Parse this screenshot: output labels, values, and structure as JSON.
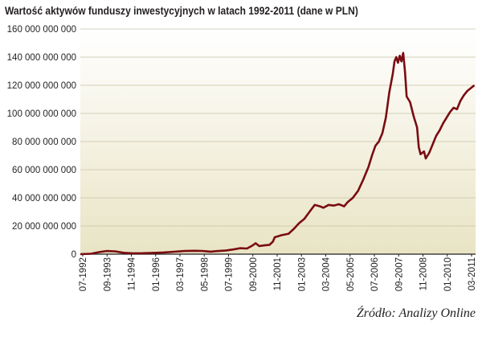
{
  "chart_data": {
    "type": "line",
    "title": "Wartość aktywów funduszy inwestycyjnych w latach 1992-2011 (dane w PLN)",
    "source": "Źródło: Analizy Online",
    "xlabel": "",
    "ylabel": "",
    "ylim": [
      0,
      160000000000
    ],
    "xlim": [
      "1992-07",
      "2011-03"
    ],
    "grid": "horizontal",
    "colors": {
      "line": "#7a0c11",
      "plot_bg_top": "#ffffff",
      "plot_bg_bottom": "#e9e4c5",
      "grid": "#c8c3a6"
    },
    "y_ticks": [
      {
        "value": 0,
        "label": "0"
      },
      {
        "value": 20000000000,
        "label": "20 000 000 000"
      },
      {
        "value": 40000000000,
        "label": "40 000 000 000"
      },
      {
        "value": 60000000000,
        "label": "60 000 000 000"
      },
      {
        "value": 80000000000,
        "label": "80 000 000 000"
      },
      {
        "value": 100000000000,
        "label": "100 000 000 000"
      },
      {
        "value": 120000000000,
        "label": "120 000 000 000"
      },
      {
        "value": 140000000000,
        "label": "140 000 000 000"
      },
      {
        "value": 160000000000,
        "label": "160 000 000 000"
      }
    ],
    "x_ticks": [
      "07-1992",
      "09-1993",
      "11-1994",
      "01-1996",
      "03-1997",
      "05-1998",
      "07-1999",
      "09-2000",
      "11-2001",
      "01-2003",
      "03-2004",
      "05-2005",
      "07-2006",
      "09-2007",
      "11-2008",
      "01-2010",
      "03-2011"
    ],
    "series": [
      {
        "points": [
          [
            "1992-07",
            0
          ],
          [
            "1993-01",
            300000000
          ],
          [
            "1993-06",
            1500000000
          ],
          [
            "1993-10",
            2200000000
          ],
          [
            "1994-03",
            2000000000
          ],
          [
            "1994-08",
            1000000000
          ],
          [
            "1995-01",
            600000000
          ],
          [
            "1995-07",
            700000000
          ],
          [
            "1996-01",
            900000000
          ],
          [
            "1996-07",
            1200000000
          ],
          [
            "1997-01",
            1700000000
          ],
          [
            "1997-07",
            2200000000
          ],
          [
            "1998-01",
            2400000000
          ],
          [
            "1998-05",
            2300000000
          ],
          [
            "1998-10",
            1800000000
          ],
          [
            "1999-01",
            2100000000
          ],
          [
            "1999-07",
            2600000000
          ],
          [
            "1999-11",
            3300000000
          ],
          [
            "2000-03",
            4200000000
          ],
          [
            "2000-07",
            4000000000
          ],
          [
            "2000-10",
            6000000000
          ],
          [
            "2000-12",
            7800000000
          ],
          [
            "2001-02",
            5800000000
          ],
          [
            "2001-05",
            6200000000
          ],
          [
            "2001-08",
            6600000000
          ],
          [
            "2001-10",
            9000000000
          ],
          [
            "2001-11",
            12000000000
          ],
          [
            "2002-03",
            13500000000
          ],
          [
            "2002-07",
            14500000000
          ],
          [
            "2002-10",
            18000000000
          ],
          [
            "2003-01",
            22000000000
          ],
          [
            "2003-04",
            25000000000
          ],
          [
            "2003-07",
            30000000000
          ],
          [
            "2003-10",
            35000000000
          ],
          [
            "2004-01",
            34000000000
          ],
          [
            "2004-03",
            33000000000
          ],
          [
            "2004-06",
            35000000000
          ],
          [
            "2004-09",
            34500000000
          ],
          [
            "2004-12",
            35500000000
          ],
          [
            "2005-03",
            34000000000
          ],
          [
            "2005-05",
            37000000000
          ],
          [
            "2005-08",
            40000000000
          ],
          [
            "2005-11",
            45000000000
          ],
          [
            "2006-02",
            53000000000
          ],
          [
            "2006-05",
            62000000000
          ],
          [
            "2006-07",
            70000000000
          ],
          [
            "2006-09",
            77000000000
          ],
          [
            "2006-11",
            80000000000
          ],
          [
            "2007-01",
            86000000000
          ],
          [
            "2007-03",
            97000000000
          ],
          [
            "2007-05",
            115000000000
          ],
          [
            "2007-07",
            128000000000
          ],
          [
            "2007-08",
            137000000000
          ],
          [
            "2007-09",
            140000000000
          ],
          [
            "2007-10",
            136000000000
          ],
          [
            "2007-11",
            141000000000
          ],
          [
            "2007-12",
            137000000000
          ],
          [
            "2008-01",
            143000000000
          ],
          [
            "2008-02",
            130000000000
          ],
          [
            "2008-03",
            112000000000
          ],
          [
            "2008-05",
            108000000000
          ],
          [
            "2008-07",
            98000000000
          ],
          [
            "2008-09",
            90000000000
          ],
          [
            "2008-10",
            76000000000
          ],
          [
            "2008-11",
            71000000000
          ],
          [
            "2009-01",
            73000000000
          ],
          [
            "2009-02",
            68000000000
          ],
          [
            "2009-04",
            72000000000
          ],
          [
            "2009-06",
            78000000000
          ],
          [
            "2009-08",
            84000000000
          ],
          [
            "2009-10",
            88000000000
          ],
          [
            "2009-12",
            93000000000
          ],
          [
            "2010-02",
            97000000000
          ],
          [
            "2010-04",
            101000000000
          ],
          [
            "2010-06",
            104000000000
          ],
          [
            "2010-08",
            103000000000
          ],
          [
            "2010-10",
            109000000000
          ],
          [
            "2010-12",
            113000000000
          ],
          [
            "2011-02",
            116000000000
          ],
          [
            "2011-04",
            118000000000
          ],
          [
            "2011-06",
            120000000000
          ]
        ]
      }
    ]
  }
}
